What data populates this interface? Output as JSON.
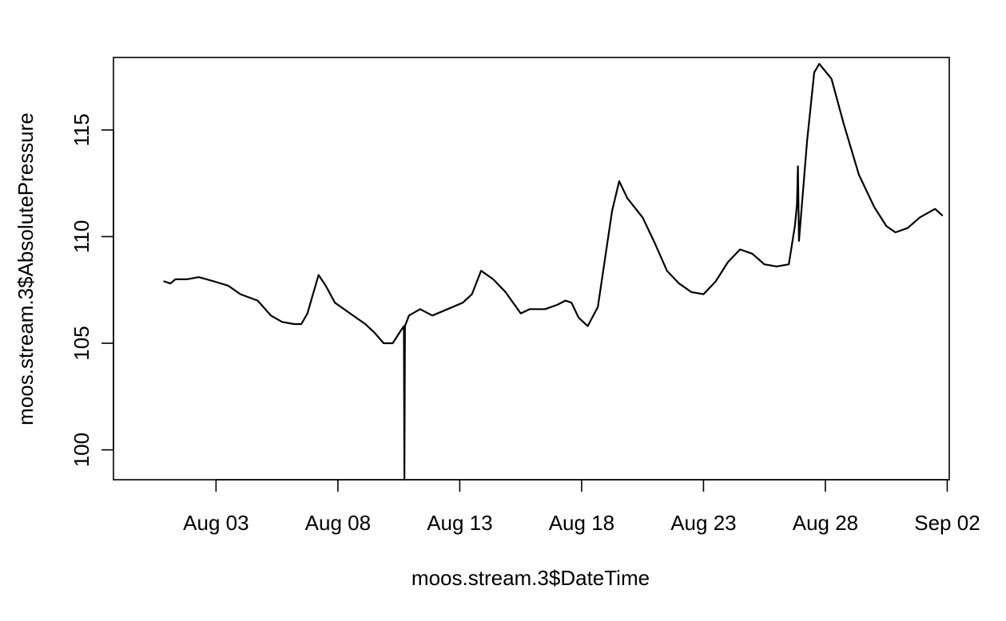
{
  "chart_data": {
    "type": "line",
    "title": "",
    "xlabel": "moos.stream.3$DateTime",
    "ylabel": "moos.stream.3$AbsolutePressure",
    "xlim": [
      "2024-07-29T19:00",
      "2024-09-02T02:00"
    ],
    "ylim": [
      98.6,
      118.4
    ],
    "x_tick_labels": [
      {
        "date": "2024-08-03",
        "label": "Aug 03"
      },
      {
        "date": "2024-08-08",
        "label": "Aug 08"
      },
      {
        "date": "2024-08-13",
        "label": "Aug 13"
      },
      {
        "date": "2024-08-18",
        "label": "Aug 18"
      },
      {
        "date": "2024-08-23",
        "label": "Aug 23"
      },
      {
        "date": "2024-08-28",
        "label": "Aug 28"
      },
      {
        "date": "2024-09-02",
        "label": "Sep 02"
      }
    ],
    "y_ticks": [
      100,
      105,
      110,
      115
    ],
    "y_tick_labels": [
      "100",
      "105",
      "110",
      "115"
    ],
    "grid": false,
    "legend": "none",
    "line_color": "#000000",
    "series": [
      {
        "x": [
          "2024-07-31T21:00",
          "2024-08-01T03:00",
          "2024-08-01T08:00",
          "2024-08-01T19:00",
          "2024-08-02T07:00",
          "2024-08-02T22:00",
          "2024-08-03T12:00",
          "2024-08-04T00:00",
          "2024-08-04T17:00",
          "2024-08-05T06:00",
          "2024-08-05T17:00",
          "2024-08-06T05:00",
          "2024-08-06T12:00",
          "2024-08-06T18:00",
          "2024-08-06T21:00",
          "2024-08-07T05:00",
          "2024-08-07T12:00",
          "2024-08-07T21:00",
          "2024-08-08T12:00",
          "2024-08-09T03:00",
          "2024-08-09T12:00",
          "2024-08-09T21:00",
          "2024-08-10T06:00",
          "2024-08-10T14:00",
          "2024-08-10T17:00",
          "2024-08-10T17:30",
          "2024-08-10T18:00",
          "2024-08-10T22:00",
          "2024-08-11T09:00",
          "2024-08-11T21:00",
          "2024-08-12T12:00",
          "2024-08-13T03:00",
          "2024-08-13T12:00",
          "2024-08-13T21:00",
          "2024-08-14T09:00",
          "2024-08-14T21:00",
          "2024-08-15T12:00",
          "2024-08-15T21:00",
          "2024-08-16T12:00",
          "2024-08-17T00:00",
          "2024-08-17T08:00",
          "2024-08-17T14:00",
          "2024-08-17T21:00",
          "2024-08-18T06:00",
          "2024-08-18T16:00",
          "2024-08-19T06:00",
          "2024-08-19T13:00",
          "2024-08-19T21:00",
          "2024-08-20T12:00",
          "2024-08-21T00:00",
          "2024-08-21T12:00",
          "2024-08-22T00:00",
          "2024-08-22T12:00",
          "2024-08-23T00:00",
          "2024-08-23T12:00",
          "2024-08-24T00:00",
          "2024-08-24T12:00",
          "2024-08-25T00:00",
          "2024-08-25T12:00",
          "2024-08-26T00:00",
          "2024-08-26T12:00",
          "2024-08-26T18:00",
          "2024-08-26T20:00",
          "2024-08-26T21:00",
          "2024-08-26T22:00",
          "2024-08-27T06:00",
          "2024-08-27T13:00",
          "2024-08-27T18:00",
          "2024-08-28T06:00",
          "2024-08-28T18:00",
          "2024-08-29T09:00",
          "2024-08-30T00:00",
          "2024-08-30T12:00",
          "2024-08-30T21:00",
          "2024-08-31T09:00",
          "2024-08-31T21:00",
          "2024-09-01T12:00",
          "2024-09-01T19:00"
        ],
        "y": [
          107.9,
          107.8,
          108.0,
          108.0,
          108.1,
          107.9,
          107.7,
          107.3,
          107.0,
          106.3,
          106.0,
          105.9,
          105.9,
          106.4,
          106.9,
          108.2,
          107.7,
          106.9,
          106.4,
          105.9,
          105.5,
          105.0,
          105.0,
          105.6,
          105.8,
          98.6,
          105.8,
          106.3,
          106.6,
          106.3,
          106.6,
          106.9,
          107.3,
          108.4,
          108.0,
          107.4,
          106.4,
          106.6,
          106.6,
          106.8,
          107.0,
          106.9,
          106.2,
          105.8,
          106.7,
          111.2,
          112.6,
          111.8,
          110.9,
          109.7,
          108.4,
          107.8,
          107.4,
          107.3,
          107.9,
          108.8,
          109.4,
          109.2,
          108.7,
          108.6,
          108.7,
          110.5,
          111.5,
          113.3,
          109.8,
          114.5,
          117.7,
          118.1,
          117.4,
          115.3,
          112.9,
          111.4,
          110.5,
          110.2,
          110.4,
          110.9,
          111.3,
          111.0
        ]
      }
    ]
  }
}
